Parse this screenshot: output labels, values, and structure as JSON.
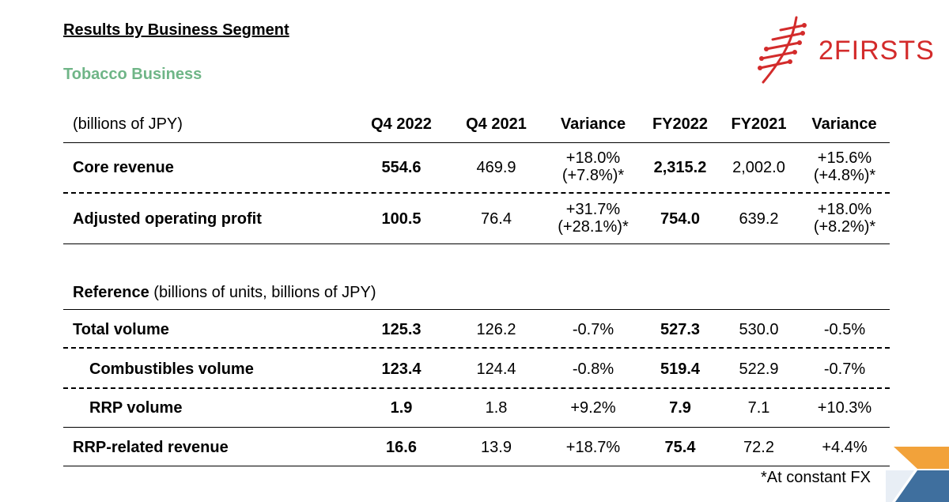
{
  "page": {
    "title": "Results by Business Segment",
    "subtitle": "Tobacco Business",
    "logo_text": "2FIRSTS",
    "footnote": "*At constant FX"
  },
  "table1": {
    "unit_label": "(billions of JPY)",
    "headers": [
      "Q4  2022",
      "Q4  2021",
      "Variance",
      "FY2022",
      "FY2021",
      "Variance"
    ],
    "rows": [
      {
        "label": "Core revenue",
        "q4_2022": "554.6",
        "q4_2021": "469.9",
        "var1_a": "+18.0%",
        "var1_b": "(+7.8%)*",
        "fy2022": "2,315.2",
        "fy2021": "2,002.0",
        "var2_a": "+15.6%",
        "var2_b": "(+4.8%)*"
      },
      {
        "label": "Adjusted operating profit",
        "q4_2022": "100.5",
        "q4_2021": "76.4",
        "var1_a": "+31.7%",
        "var1_b": "(+28.1%)*",
        "fy2022": "754.0",
        "fy2021": "639.2",
        "var2_a": "+18.0%",
        "var2_b": "(+8.2%)*"
      }
    ]
  },
  "table2": {
    "ref_label": "Reference",
    "ref_unit": "(billions of units, billions of JPY)",
    "rows": [
      {
        "label": "Total volume",
        "q4_2022": "125.3",
        "q4_2021": "126.2",
        "var1": "-0.7%",
        "fy2022": "527.3",
        "fy2021": "530.0",
        "var2": "-0.5%"
      },
      {
        "label": "Combustibles volume",
        "q4_2022": "123.4",
        "q4_2021": "124.4",
        "var1": "-0.8%",
        "fy2022": "519.4",
        "fy2021": "522.9",
        "var2": "-0.7%"
      },
      {
        "label": "RRP volume",
        "q4_2022": "1.9",
        "q4_2021": "1.8",
        "var1": "+9.2%",
        "fy2022": "7.9",
        "fy2021": "7.1",
        "var2": "+10.3%"
      },
      {
        "label": "RRP-related revenue",
        "q4_2022": "16.6",
        "q4_2021": "13.9",
        "var1": "+18.7%",
        "fy2022": "75.4",
        "fy2021": "72.2",
        "var2": "+4.4%"
      }
    ]
  },
  "colors": {
    "green": "#6fb587",
    "logo_red": "#d32b2b",
    "corner_orange": "#f2a23a",
    "corner_blue": "#3f6f9e"
  }
}
